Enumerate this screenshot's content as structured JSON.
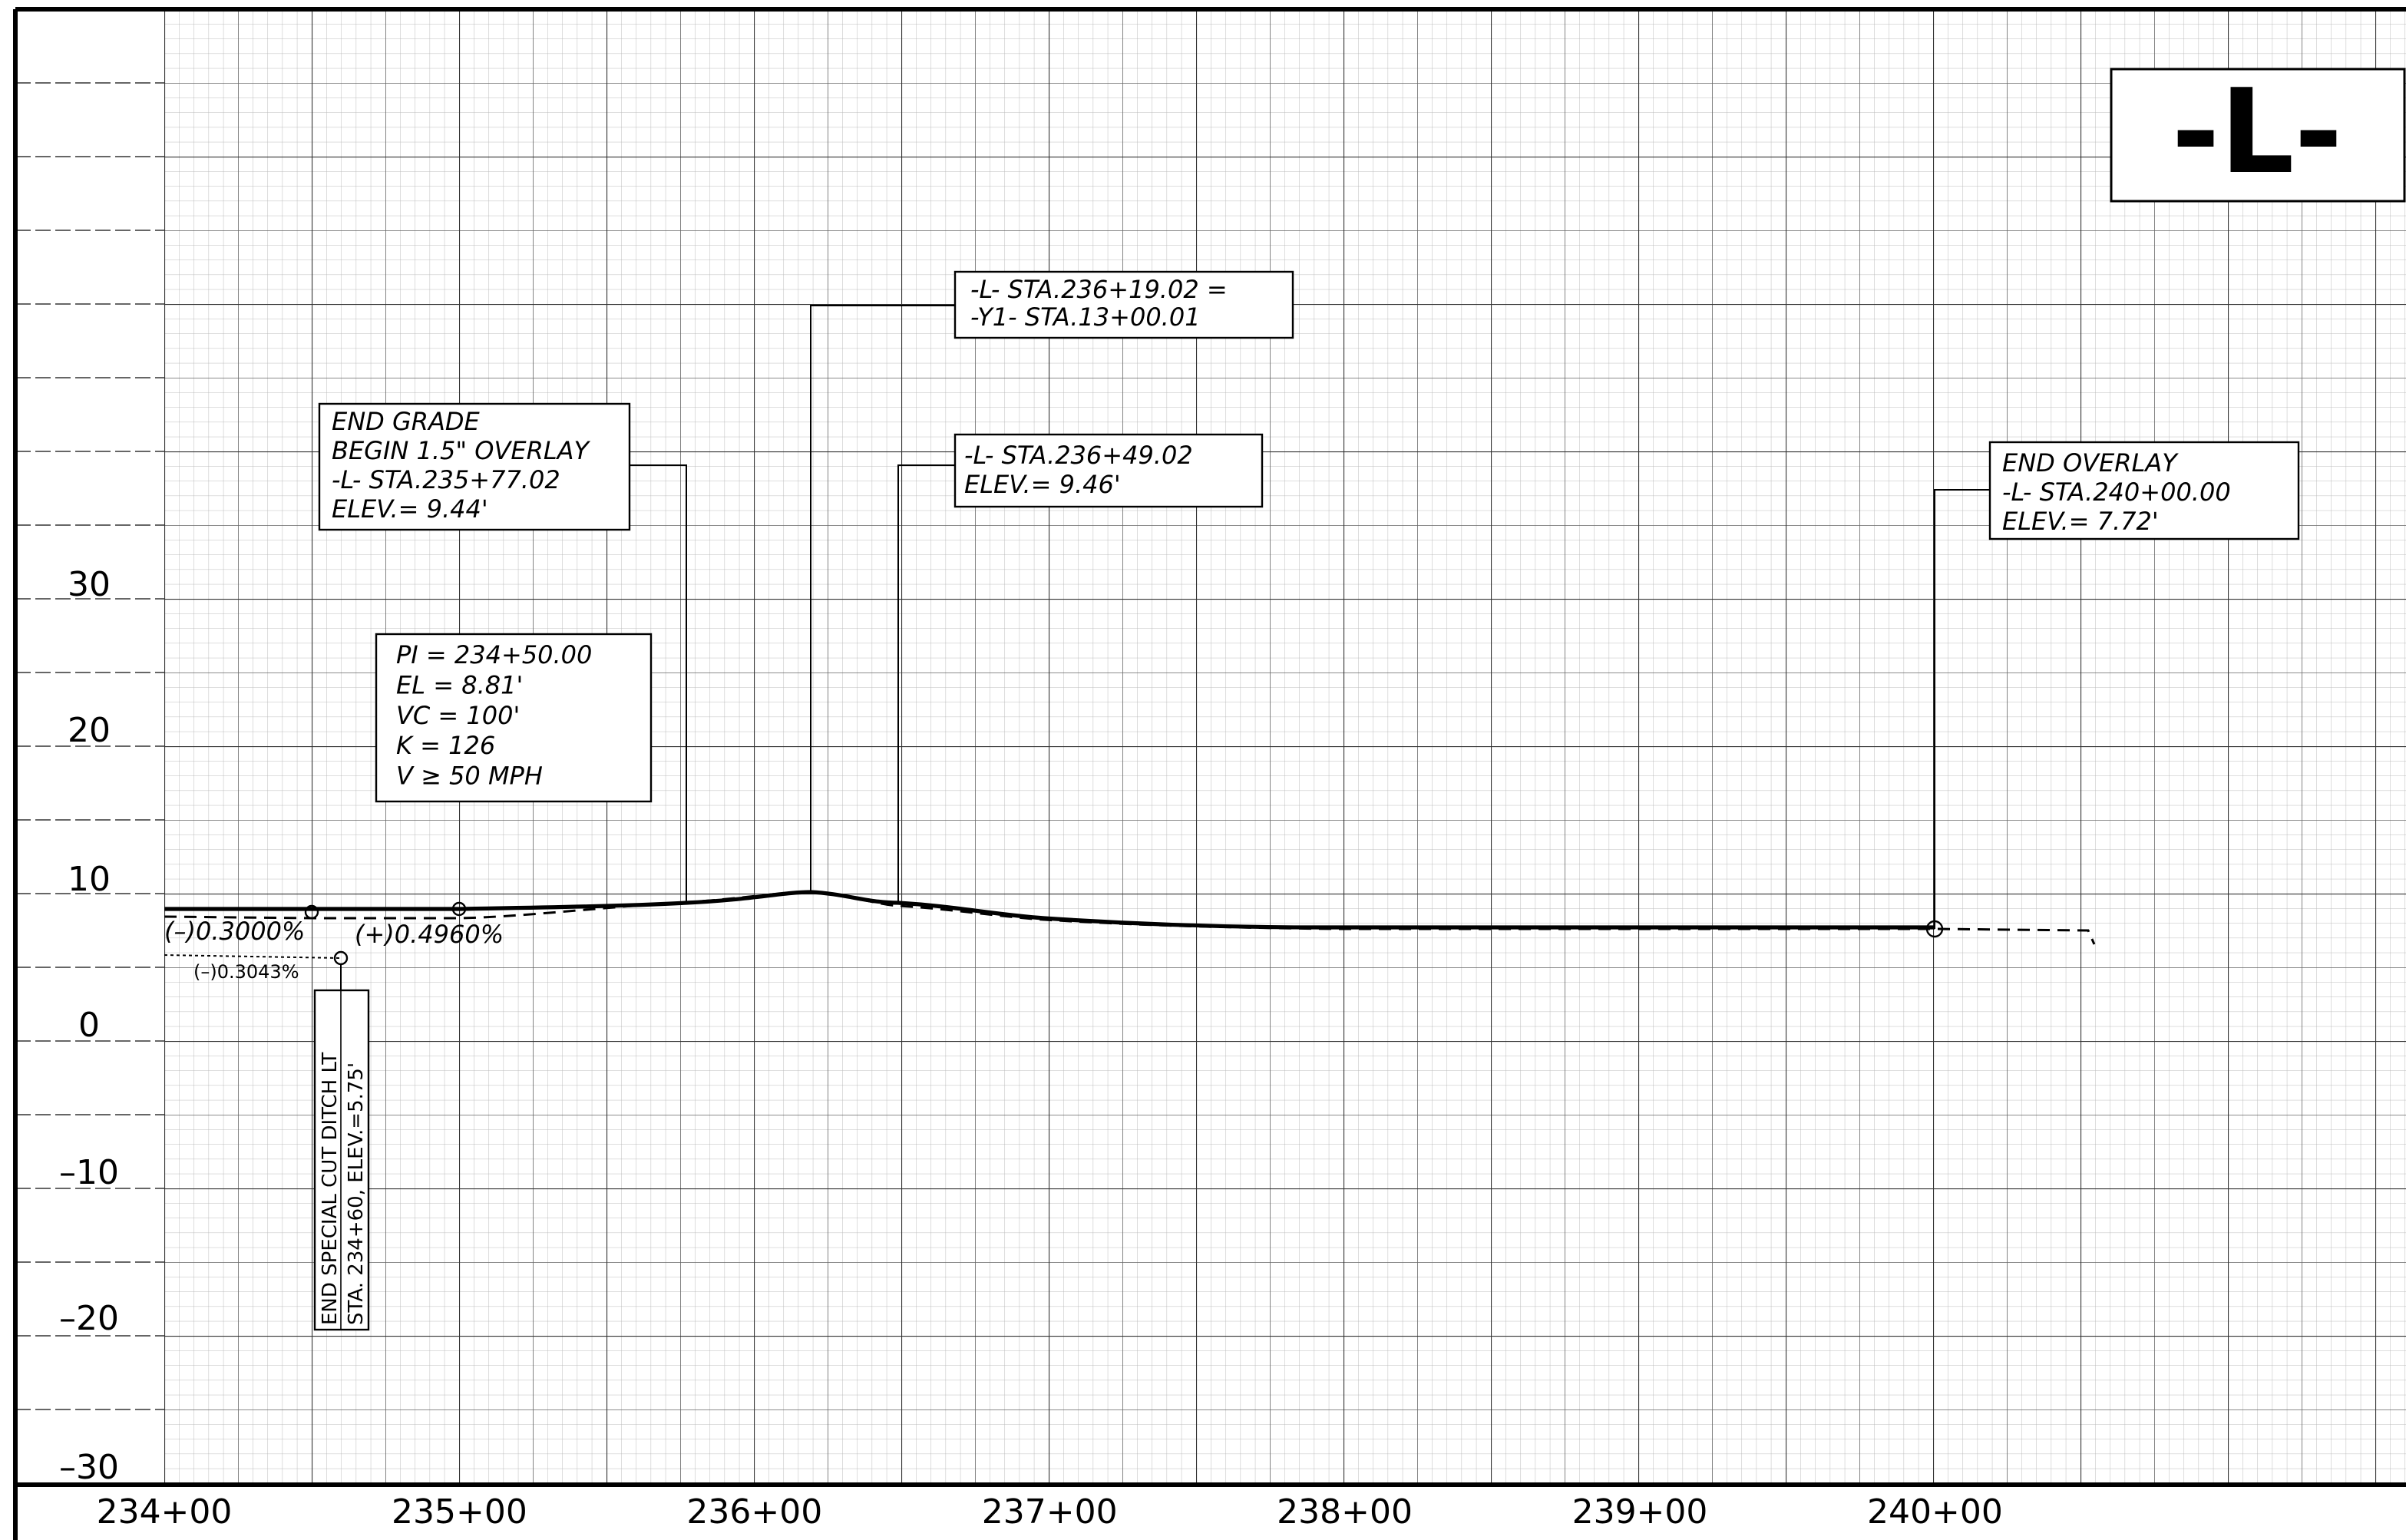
{
  "title": "-L-",
  "y_axis": {
    "labels": [
      "30",
      "20",
      "10",
      "0",
      "–10",
      "–20",
      "–30"
    ]
  },
  "x_axis": {
    "labels": [
      "234+00",
      "235+00",
      "236+00",
      "237+00",
      "238+00",
      "239+00",
      "240+00"
    ]
  },
  "callouts": [
    {
      "lines": [
        "END GRADE",
        "BEGIN 1.5\" OVERLAY",
        "-L-  STA.235+77.02",
        "ELEV.=  9.44'"
      ]
    },
    {
      "lines": [
        "PI =  234+50.00",
        "EL  =  8.81'",
        "VC  =  100'",
        "K  =  126",
        "V  ≥  50  MPH"
      ]
    },
    {
      "lines": [
        "-L-  STA.236+19.02  =",
        "-Y1-  STA.13+00.01"
      ]
    },
    {
      "lines": [
        "-L-  STA.236+49.02",
        "ELEV.=  9.46'"
      ]
    },
    {
      "lines": [
        "END  OVERLAY",
        "-L-  STA.240+00.00",
        "ELEV.=  7.72'"
      ]
    }
  ],
  "grade_labels": [
    "(–)0.3000%",
    "(+)0.4960%",
    "(–)0.3043%"
  ],
  "ditch_label": {
    "lines": [
      "END  SPECIAL  CUT  DITCH  LT",
      "STA. 234+60, ELEV.=5.75'"
    ]
  }
}
